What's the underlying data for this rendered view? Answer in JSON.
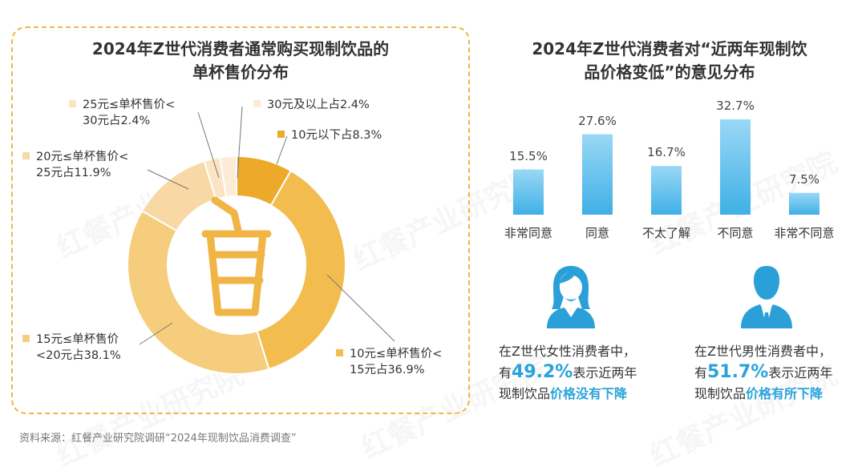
{
  "left": {
    "title_line1": "2024年Z世代消费者通常购买现制饮品的",
    "title_line2": "单杯售价分布"
  },
  "right": {
    "title_line1": "2024年Z世代消费者对“近两年现制饮",
    "title_line2": "品价格变低”的意见分布"
  },
  "chart_data": [
    {
      "type": "pie",
      "title": "2024年Z世代消费者通常购买现制饮品的单杯售价分布",
      "slices": [
        {
          "label_line1": "10元以下占8.3%",
          "label_line2": "",
          "value": 8.3,
          "color": "#eca92a"
        },
        {
          "label_line1": "10元≤单杯售价<",
          "label_line2": "15元占36.9%",
          "value": 36.9,
          "color": "#f2bd4e"
        },
        {
          "label_line1": "15元≤单杯售价",
          "label_line2": "<20元占38.1%",
          "value": 38.1,
          "color": "#f5cd7c"
        },
        {
          "label_line1": "20元≤单杯售价<",
          "label_line2": "25元占11.9%",
          "value": 11.9,
          "color": "#f8d9a6"
        },
        {
          "label_line1": "25元≤单杯售价<",
          "label_line2": "30元占2.4%",
          "value": 2.4,
          "color": "#fbe4c4"
        },
        {
          "label_line1": "30元及以上占2.4%",
          "label_line2": "",
          "value": 2.4,
          "color": "#fcebd6"
        }
      ]
    },
    {
      "type": "bar",
      "title": "2024年Z世代消费者对“近两年现制饮品价格变低”的意见分布",
      "categories": [
        "非常同意",
        "同意",
        "不太了解",
        "不同意",
        "非常不同意"
      ],
      "values": [
        15.5,
        27.6,
        16.7,
        32.7,
        7.5
      ],
      "value_labels": [
        "15.5%",
        "27.6%",
        "16.7%",
        "32.7%",
        "7.5%"
      ],
      "ylim": [
        0,
        32.7
      ],
      "colors": {
        "top": "#9ad8f6",
        "bottom": "#3fb0e6"
      }
    }
  ],
  "female": {
    "line1": "在Z世代女性消费者中，",
    "line2_pre": "有",
    "line2_big": "49.2%",
    "line2_post": "表示近两年",
    "line3_pre": "现制饮品",
    "line3_em": "价格没有下降"
  },
  "male": {
    "line1": "在Z世代男性消费者中，",
    "line2_pre": "有",
    "line2_big": "51.7%",
    "line2_post": "表示近两年",
    "line3_pre": "现制饮品",
    "line3_em": "价格有所下降"
  },
  "source": "资料来源：红餐产业研究院调研“2024年现制饮品消费调查”",
  "watermark": "红餐产业研究院",
  "icons": {
    "cup": "drink-cup-icon",
    "female": "female-user-icon",
    "male": "male-user-icon"
  },
  "colors": {
    "accent_blue": "#29a3dc",
    "accent_orange": "#f0b545"
  }
}
